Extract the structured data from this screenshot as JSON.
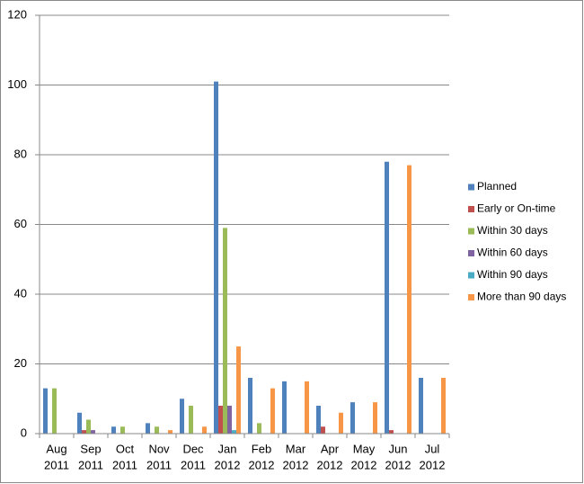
{
  "chart_data": {
    "type": "bar",
    "categories": [
      [
        "Aug",
        "2011"
      ],
      [
        "Sep",
        "2011"
      ],
      [
        "Oct",
        "2011"
      ],
      [
        "Nov",
        "2011"
      ],
      [
        "Dec",
        "2011"
      ],
      [
        "Jan",
        "2012"
      ],
      [
        "Feb",
        "2012"
      ],
      [
        "Mar",
        "2012"
      ],
      [
        "Apr",
        "2012"
      ],
      [
        "May",
        "2012"
      ],
      [
        "Jun",
        "2012"
      ],
      [
        "Jul",
        "2012"
      ]
    ],
    "series": [
      {
        "name": "Planned",
        "color": "#4f81bd",
        "values": [
          13,
          6,
          2,
          3,
          10,
          101,
          16,
          15,
          8,
          9,
          78,
          16
        ]
      },
      {
        "name": "Early or On-time",
        "color": "#c0504d",
        "values": [
          0,
          1,
          0,
          0,
          0,
          8,
          0,
          0,
          2,
          0,
          1,
          0
        ]
      },
      {
        "name": "Within 30 days",
        "color": "#9bbb59",
        "values": [
          13,
          4,
          2,
          2,
          8,
          59,
          3,
          0,
          0,
          0,
          0,
          0
        ]
      },
      {
        "name": "Within 60 days",
        "color": "#8064a2",
        "values": [
          0,
          1,
          0,
          0,
          0,
          8,
          0,
          0,
          0,
          0,
          0,
          0
        ]
      },
      {
        "name": "Within 90 days",
        "color": "#4bacc6",
        "values": [
          0,
          0,
          0,
          0,
          0,
          1,
          0,
          0,
          0,
          0,
          0,
          0
        ]
      },
      {
        "name": "More than 90 days",
        "color": "#f79646",
        "values": [
          0,
          0,
          0,
          1,
          2,
          25,
          13,
          15,
          6,
          9,
          77,
          16
        ]
      }
    ],
    "ylim": [
      0,
      120
    ],
    "yticks": [
      0,
      20,
      40,
      60,
      80,
      100,
      120
    ],
    "grid": true,
    "legend": "right"
  }
}
